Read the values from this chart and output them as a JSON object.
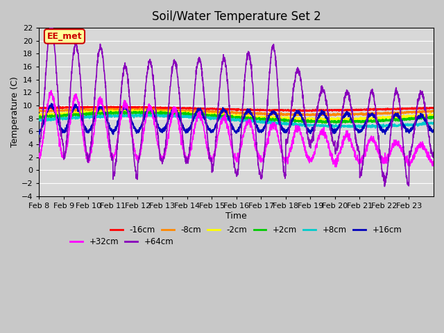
{
  "title": "Soil/Water Temperature Set 2",
  "xlabel": "Time",
  "ylabel": "Temperature (C)",
  "ylim": [
    -4,
    22
  ],
  "yticks": [
    -4,
    -2,
    0,
    2,
    4,
    6,
    8,
    10,
    12,
    14,
    16,
    18,
    20,
    22
  ],
  "x_labels": [
    "Feb 8",
    "Feb 9",
    "Feb 10",
    "Feb 11",
    "Feb 12",
    "Feb 13",
    "Feb 14",
    "Feb 15",
    "Feb 16",
    "Feb 17",
    "Feb 18",
    "Feb 19",
    "Feb 20",
    "Feb 21",
    "Feb 22",
    "Feb 23"
  ],
  "n_days": 16,
  "fig_bg_color": "#c8c8c8",
  "plot_bg_color": "#d8d8d8",
  "legend_entries": [
    {
      "label": "-16cm",
      "color": "#ff0000"
    },
    {
      "label": "-8cm",
      "color": "#ff8800"
    },
    {
      "label": "-2cm",
      "color": "#ffff00"
    },
    {
      "label": "+2cm",
      "color": "#00cc00"
    },
    {
      "label": "+8cm",
      "color": "#00cccc"
    },
    {
      "label": "+16cm",
      "color": "#0000bb"
    },
    {
      "label": "+32cm",
      "color": "#ff00ff"
    },
    {
      "label": "+64cm",
      "color": "#8800bb"
    }
  ],
  "annotation_text": "EE_met",
  "annotation_color": "#cc0000",
  "annotation_bg": "#ffff99"
}
